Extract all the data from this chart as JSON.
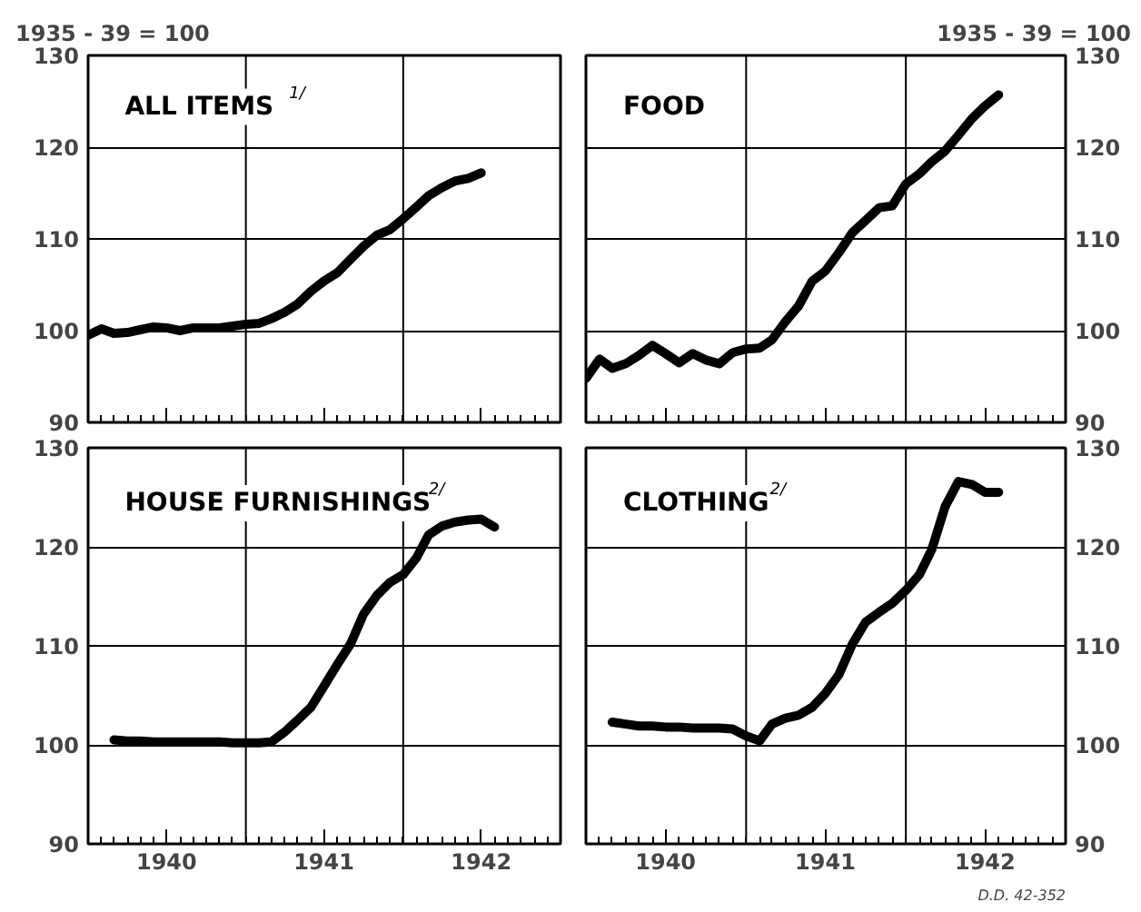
{
  "chart_data": [
    {
      "type": "line",
      "title": "ALL ITEMS$^{1/}$",
      "ylabel": "1935 - 39 = 100",
      "tick_labels": "y",
      "grid": "y",
      "xlim": [
        "1940-01",
        "1943-01"
      ],
      "ylim": [
        90,
        130
      ],
      "yticks": [
        90,
        100,
        110,
        120,
        130
      ],
      "xticks": [
        {
          "value": "1940-07",
          "label": null
        },
        {
          "value": "1941-07",
          "label": null
        },
        {
          "value": "1942-07",
          "label": null
        }
      ],
      "ref_lines": [
        {
          "axis": "x",
          "value": "1941-01"
        },
        {
          "axis": "x",
          "value": "1942-01"
        }
      ],
      "x": [
        "1940-01",
        "1940-02",
        "1940-03",
        "1940-04",
        "1940-05",
        "1940-06",
        "1940-07",
        "1940-08",
        "1940-09",
        "1940-10",
        "1940-11",
        "1940-12",
        "1941-01",
        "1941-02",
        "1941-03",
        "1941-04",
        "1941-05",
        "1941-06",
        "1941-07",
        "1941-08",
        "1941-09",
        "1941-10",
        "1941-11",
        "1941-12",
        "1942-01",
        "1942-02",
        "1942-03",
        "1942-04",
        "1942-05",
        "1942-06",
        "1942-07"
      ],
      "series": [
        {
          "color": "#000000",
          "values": [
            99.5,
            100.2,
            99.7,
            99.8,
            100.1,
            100.4,
            100.3,
            100.0,
            100.3,
            100.3,
            100.3,
            100.5,
            100.7,
            100.8,
            101.3,
            102.0,
            102.9,
            104.3,
            105.4,
            106.3,
            107.8,
            109.2,
            110.4,
            111.0,
            112.2,
            113.5,
            114.7,
            115.6,
            116.3,
            116.6,
            117.2
          ]
        }
      ]
    },
    {
      "type": "line",
      "title": "FOOD",
      "ylabel": "1935 - 39 = 100",
      "tick_labels": "y",
      "grid": "y",
      "xlim": [
        "1940-01",
        "1943-01"
      ],
      "ylim": [
        90,
        130
      ],
      "yticks": [
        90,
        100,
        110,
        120,
        130
      ],
      "xticks": [
        {
          "value": "1940-07",
          "label": null
        },
        {
          "value": "1941-07",
          "label": null
        },
        {
          "value": "1942-07",
          "label": null
        }
      ],
      "ref_lines": [
        {
          "axis": "x",
          "value": "1941-01"
        },
        {
          "axis": "x",
          "value": "1942-01"
        }
      ],
      "x": [
        "1940-01",
        "1940-02",
        "1940-03",
        "1940-04",
        "1940-05",
        "1940-06",
        "1940-07",
        "1940-08",
        "1940-09",
        "1940-10",
        "1940-11",
        "1940-12",
        "1941-01",
        "1941-02",
        "1941-03",
        "1941-04",
        "1941-05",
        "1941-06",
        "1941-07",
        "1941-08",
        "1941-09",
        "1941-10",
        "1941-11",
        "1941-12",
        "1942-01",
        "1942-02",
        "1942-03",
        "1942-04",
        "1942-05",
        "1942-06",
        "1942-07",
        "1942-08"
      ],
      "series": [
        {
          "color": "#000000",
          "values": [
            94.8,
            96.9,
            95.9,
            96.4,
            97.3,
            98.4,
            97.5,
            96.5,
            97.5,
            96.8,
            96.4,
            97.6,
            98.0,
            98.1,
            99.0,
            101.0,
            102.7,
            105.4,
            106.5,
            108.5,
            110.7,
            112.0,
            113.4,
            113.6,
            116.0,
            117.1,
            118.4,
            119.6,
            121.3,
            123.1,
            124.5,
            125.7
          ]
        }
      ]
    },
    {
      "type": "line",
      "title": "HOUSE FURNISHINGS$^{2/}$",
      "grid": "y",
      "xlim": [
        "1940-01",
        "1943-01"
      ],
      "ylim": [
        90,
        130
      ],
      "yticks": [
        90,
        100,
        110,
        120,
        130
      ],
      "xticks": [
        {
          "value": "1940-07",
          "label": "1940"
        },
        {
          "value": "1941-07",
          "label": "1941"
        },
        {
          "value": "1942-07",
          "label": "1942"
        }
      ],
      "ref_lines": [
        {
          "axis": "x",
          "value": "1941-01"
        },
        {
          "axis": "x",
          "value": "1942-01"
        }
      ],
      "x": [
        "1940-03",
        "1940-04",
        "1940-05",
        "1940-06",
        "1940-07",
        "1940-08",
        "1940-09",
        "1940-10",
        "1940-11",
        "1940-12",
        "1941-01",
        "1941-02",
        "1941-03",
        "1941-04",
        "1941-05",
        "1941-06",
        "1941-07",
        "1941-08",
        "1941-09",
        "1941-10",
        "1941-11",
        "1941-12",
        "1942-01",
        "1942-02",
        "1942-03",
        "1942-04",
        "1942-05",
        "1942-06",
        "1942-07",
        "1942-08"
      ],
      "series": [
        {
          "color": "#000000",
          "values": [
            100.5,
            100.4,
            100.4,
            100.3,
            100.3,
            100.3,
            100.3,
            100.3,
            100.3,
            100.2,
            100.2,
            100.2,
            100.3,
            101.3,
            102.5,
            103.8,
            105.9,
            108.1,
            110.2,
            113.2,
            115.1,
            116.4,
            117.2,
            118.9,
            121.2,
            122.1,
            122.5,
            122.7,
            122.8,
            122.0
          ]
        }
      ]
    },
    {
      "type": "line",
      "title": "CLOTHING$^{2/}$",
      "grid": "y",
      "xlim": [
        "1940-01",
        "1943-01"
      ],
      "ylim": [
        90,
        130
      ],
      "yticks": [
        90,
        100,
        110,
        120,
        130
      ],
      "xticks": [
        {
          "value": "1940-07",
          "label": "1940"
        },
        {
          "value": "1941-07",
          "label": "1941"
        },
        {
          "value": "1942-07",
          "label": "1942"
        }
      ],
      "ref_lines": [
        {
          "axis": "x",
          "value": "1941-01"
        },
        {
          "axis": "x",
          "value": "1942-01"
        }
      ],
      "annotations": [
        "D.D. 42-352"
      ],
      "x": [
        "1940-03",
        "1940-04",
        "1940-05",
        "1940-06",
        "1940-07",
        "1940-08",
        "1940-09",
        "1940-10",
        "1940-11",
        "1940-12",
        "1941-01",
        "1941-02",
        "1941-03",
        "1941-04",
        "1941-05",
        "1941-06",
        "1941-07",
        "1941-08",
        "1941-09",
        "1941-10",
        "1941-11",
        "1941-12",
        "1942-01",
        "1942-02",
        "1942-03",
        "1942-04",
        "1942-05",
        "1942-06",
        "1942-07",
        "1942-08"
      ],
      "series": [
        {
          "color": "#000000",
          "values": [
            102.3,
            102.1,
            101.9,
            101.9,
            101.8,
            101.8,
            101.7,
            101.7,
            101.7,
            101.6,
            100.9,
            100.4,
            102.1,
            102.7,
            103.0,
            103.8,
            105.2,
            107.1,
            110.2,
            112.4,
            113.4,
            114.3,
            115.6,
            117.2,
            119.7,
            124.1,
            126.6,
            126.3,
            125.5,
            125.5
          ]
        }
      ]
    }
  ]
}
